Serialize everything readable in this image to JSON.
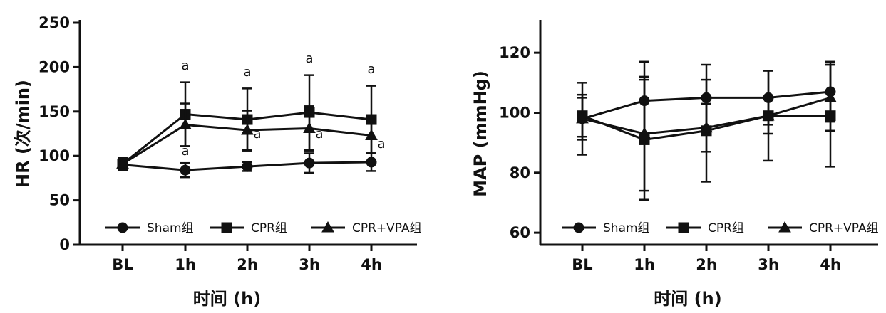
{
  "chart_data": [
    {
      "type": "line",
      "ylabel": "HR (次/min)",
      "xlabel": "时间 (h)",
      "categories": [
        "BL",
        "1h",
        "2h",
        "3h",
        "4h"
      ],
      "ylim": [
        0,
        250
      ],
      "yticks": [
        0,
        50,
        100,
        150,
        200,
        250
      ],
      "legend": "bottom",
      "series": [
        {
          "name": "Sham组",
          "marker": "circle",
          "values": [
            90,
            84,
            88,
            92,
            93
          ],
          "error": [
            6,
            8,
            5,
            11,
            10
          ]
        },
        {
          "name": "CPR组",
          "marker": "square",
          "values": [
            91,
            147,
            141,
            149,
            141
          ],
          "error": [
            7,
            36,
            35,
            42,
            38
          ]
        },
        {
          "name": "CPR+VPA组",
          "marker": "triangle",
          "values": [
            91,
            135,
            129,
            131,
            123
          ],
          "error": [
            7,
            24,
            22,
            25,
            20
          ]
        }
      ],
      "annotations": [
        {
          "label": "a",
          "category": "1h",
          "y": 197
        },
        {
          "label": "a",
          "category": "2h",
          "y": 190
        },
        {
          "label": "a",
          "category": "3h",
          "y": 205
        },
        {
          "label": "a",
          "category": "4h",
          "y": 193
        },
        {
          "label": "a",
          "category": "1h",
          "y": 101
        },
        {
          "label": "a",
          "category": "2h",
          "y": 120,
          "side": "right"
        },
        {
          "label": "a",
          "category": "3h",
          "y": 120,
          "side": "right"
        },
        {
          "label": "a",
          "category": "4h",
          "y": 109,
          "side": "right"
        }
      ]
    },
    {
      "type": "line",
      "ylabel": "MAP (mmHg)",
      "xlabel": "时间 (h)",
      "categories": [
        "BL",
        "1h",
        "2h",
        "3h",
        "4h"
      ],
      "ylim": [
        56,
        130
      ],
      "yticks": [
        60,
        80,
        100,
        120
      ],
      "legend": "bottom",
      "series": [
        {
          "name": "Sham组",
          "marker": "circle",
          "values": [
            98,
            104,
            105,
            105,
            107
          ],
          "error": [
            12,
            13,
            11,
            9,
            10
          ]
        },
        {
          "name": "CPR组",
          "marker": "square",
          "values": [
            99,
            91,
            94,
            99,
            99
          ],
          "error": [
            7,
            20,
            17,
            15,
            17
          ]
        },
        {
          "name": "CPR+VPA组",
          "marker": "triangle",
          "values": [
            98,
            93,
            95,
            99,
            105
          ],
          "error": [
            7,
            19,
            8,
            6,
            11
          ]
        }
      ]
    }
  ]
}
